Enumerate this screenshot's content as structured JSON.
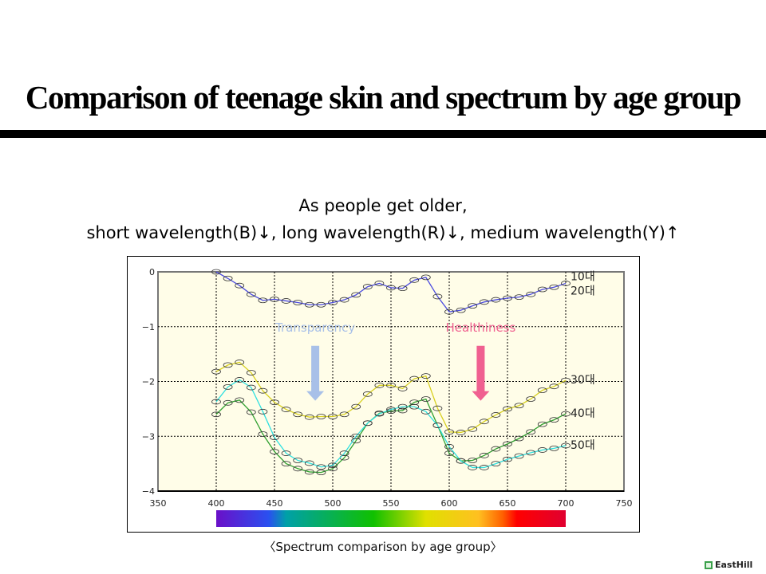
{
  "title": "Comparison of teenage skin and spectrum by age group",
  "subtitle_line1": "As people get older,",
  "subtitle_line2": "short wavelength(B)↓, long wavelength(R)↓, medium wavelength(Y)↑",
  "caption": "〈Spectrum comparison by age group〉",
  "logo": "EastHill",
  "chart_data": {
    "type": "line",
    "xlim": [
      350,
      750
    ],
    "ylim": [
      -4,
      0
    ],
    "xticks": [
      350,
      400,
      450,
      500,
      550,
      600,
      650,
      700,
      750
    ],
    "yticks": [
      0,
      -1,
      -2,
      -3,
      -4
    ],
    "grid": true,
    "x": [
      400,
      410,
      420,
      430,
      440,
      450,
      460,
      470,
      480,
      490,
      500,
      510,
      520,
      530,
      540,
      550,
      560,
      570,
      580,
      590,
      600,
      610,
      620,
      630,
      640,
      650,
      660,
      670,
      680,
      690,
      700
    ],
    "series": [
      {
        "name": "10대 20대",
        "labels": [
          "10대",
          "20대"
        ],
        "color": "#4a4ae0",
        "values": [
          0,
          -0.12,
          -0.25,
          -0.41,
          -0.52,
          -0.5,
          -0.53,
          -0.56,
          -0.6,
          -0.6,
          -0.56,
          -0.51,
          -0.42,
          -0.27,
          -0.21,
          -0.29,
          -0.3,
          -0.15,
          -0.1,
          -0.45,
          -0.73,
          -0.7,
          -0.62,
          -0.55,
          -0.51,
          -0.48,
          -0.46,
          -0.41,
          -0.32,
          -0.28,
          -0.21
        ]
      },
      {
        "name": "30대",
        "labels": [
          "30대"
        ],
        "color": "#d8d020",
        "values": [
          -1.82,
          -1.7,
          -1.65,
          -1.84,
          -2.17,
          -2.38,
          -2.51,
          -2.6,
          -2.65,
          -2.64,
          -2.64,
          -2.6,
          -2.46,
          -2.23,
          -2.07,
          -2.07,
          -2.13,
          -1.95,
          -1.9,
          -2.49,
          -2.92,
          -2.93,
          -2.87,
          -2.73,
          -2.61,
          -2.5,
          -2.44,
          -2.32,
          -2.16,
          -2.09,
          -1.98
        ]
      },
      {
        "name": "40대",
        "labels": [
          "40대"
        ],
        "color": "#30a030",
        "values": [
          -2.6,
          -2.39,
          -2.34,
          -2.56,
          -2.96,
          -3.28,
          -3.5,
          -3.59,
          -3.65,
          -3.66,
          -3.59,
          -3.39,
          -3.08,
          -2.76,
          -2.58,
          -2.54,
          -2.53,
          -2.38,
          -2.32,
          -2.8,
          -3.31,
          -3.45,
          -3.44,
          -3.35,
          -3.23,
          -3.14,
          -3.04,
          -2.92,
          -2.78,
          -2.7,
          -2.59
        ]
      },
      {
        "name": "50대",
        "labels": [
          "50대"
        ],
        "color": "#30e0e0",
        "values": [
          -2.37,
          -2.1,
          -1.97,
          -2.11,
          -2.55,
          -3.02,
          -3.31,
          -3.44,
          -3.49,
          -3.56,
          -3.53,
          -3.31,
          -3.0,
          -2.76,
          -2.59,
          -2.51,
          -2.46,
          -2.46,
          -2.55,
          -2.8,
          -3.19,
          -3.45,
          -3.57,
          -3.57,
          -3.5,
          -3.42,
          -3.36,
          -3.3,
          -3.25,
          -3.22,
          -3.17
        ]
      }
    ],
    "annotations": [
      {
        "text": "Transparency",
        "x": 485,
        "y": -1.0,
        "color": "#a8c0e8",
        "arrow_to": -2.35
      },
      {
        "text": "Healthiness",
        "x": 627,
        "y": -1.0,
        "color": "#f06090",
        "arrow_to": -2.35
      }
    ],
    "spectrum_range": [
      400,
      700
    ]
  }
}
